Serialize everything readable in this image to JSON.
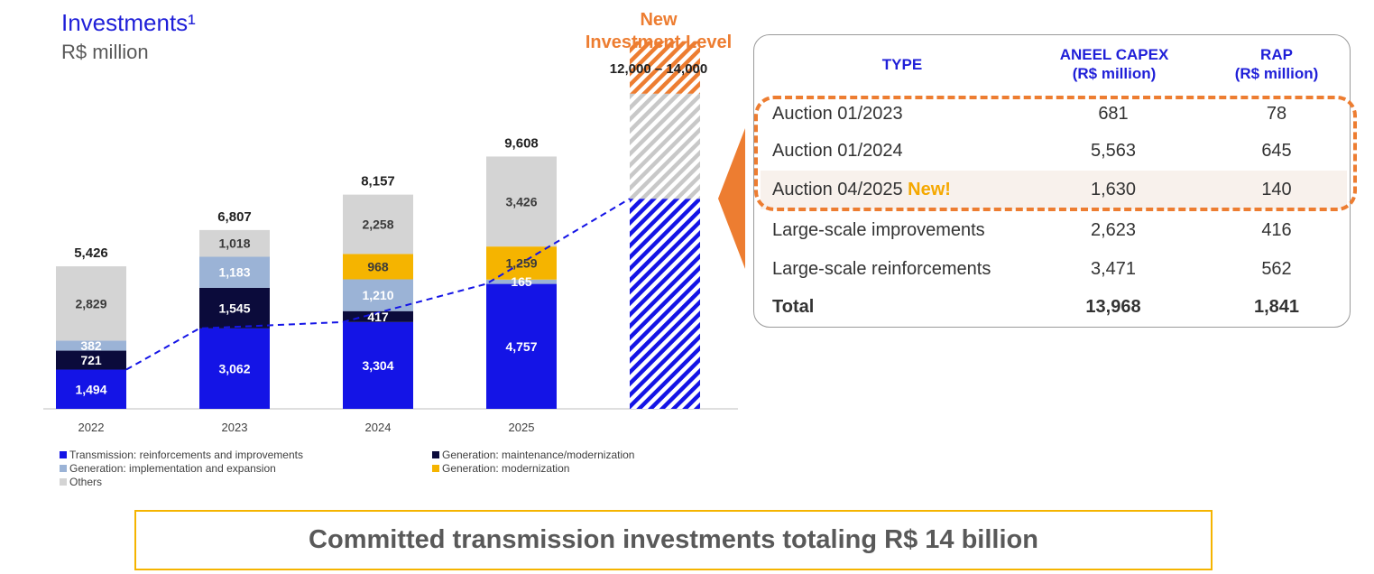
{
  "header": {
    "title": "Investments¹",
    "subtitle": "R$ million"
  },
  "new_level": {
    "label_line1": "New",
    "label_line2": "Investment Level",
    "range": "12,000 – 14,000"
  },
  "colors": {
    "transmission": "#1414e6",
    "gen_maintenance": "#0b0b3b",
    "gen_implementation": "#9bb3d6",
    "gen_modernization": "#f5b400",
    "others": "#d4d4d4",
    "accent": "#ed7d31"
  },
  "chart_data": {
    "type": "bar",
    "stacked": true,
    "categories": [
      "2022",
      "2023",
      "2024",
      "2025"
    ],
    "series": [
      {
        "name": "Transmission: reinforcements and improvements",
        "values": [
          1494,
          3062,
          3304,
          4757
        ]
      },
      {
        "name": "Generation: maintenance/modernization",
        "values": [
          721,
          1545,
          417,
          0
        ]
      },
      {
        "name": "Generation: implementation and expansion",
        "values": [
          382,
          1183,
          1210,
          165
        ]
      },
      {
        "name": "Generation: modernization",
        "values": [
          0,
          0,
          968,
          1259
        ]
      },
      {
        "name": "Others",
        "values": [
          2829,
          1018,
          2258,
          3426
        ]
      }
    ],
    "series_labels": [
      [
        "1,494",
        "3,062",
        "3,304",
        "4,757"
      ],
      [
        "721",
        "1,545",
        "417",
        ""
      ],
      [
        "382",
        "1,183",
        "1,210",
        "165"
      ],
      [
        "",
        "",
        "968",
        "1,259"
      ],
      [
        "2,829",
        "1,018",
        "2,258",
        "3,426"
      ]
    ],
    "totals": [
      5426,
      6807,
      8157,
      9608
    ],
    "total_labels": [
      "5,426",
      "6,807",
      "8,157",
      "9,608"
    ],
    "new_level_range": [
      12000,
      14000
    ],
    "projected_transmission": 8000,
    "legend": [
      "Transmission: reinforcements and improvements",
      "Generation: maintenance/modernization",
      "Generation: implementation and expansion",
      "Generation: modernization",
      "Others"
    ]
  },
  "table": {
    "headers": {
      "type": "TYPE",
      "capex_line1": "ANEEL CAPEX",
      "capex_line2": "(R$ million)",
      "rap_line1": "RAP",
      "rap_line2": "(R$ million)"
    },
    "rows": [
      {
        "type": "Auction 01/2023",
        "capex": "681",
        "rap": "78"
      },
      {
        "type": "Auction 01/2024",
        "capex": "5,563",
        "rap": "645"
      },
      {
        "type": "Auction 04/2025",
        "tag": "New!",
        "capex": "1,630",
        "rap": "140"
      },
      {
        "type": "Large-scale improvements",
        "capex": "2,623",
        "rap": "416"
      },
      {
        "type": "Large-scale reinforcements",
        "capex": "3,471",
        "rap": "562"
      }
    ],
    "total": {
      "type": "Total",
      "capex": "13,968",
      "rap": "1,841"
    }
  },
  "banner": "Committed transmission investments totaling R$ 14 billion"
}
